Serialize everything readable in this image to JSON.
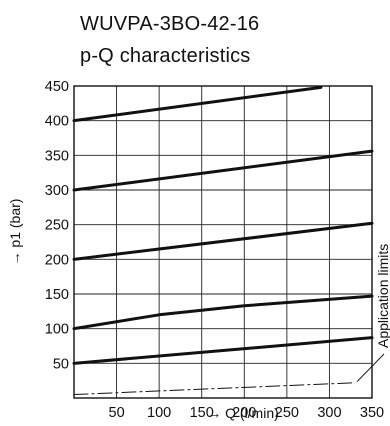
{
  "chart_data": {
    "type": "line",
    "title": "WUVPA-3BO-42-16",
    "subtitle": "p-Q characteristics",
    "xlabel": "→ Q (l/min)",
    "ylabel": "→ p1 (bar)",
    "xlim": [
      0,
      350
    ],
    "ylim": [
      0,
      450
    ],
    "x_ticks": [
      50,
      100,
      150,
      200,
      250,
      300,
      350
    ],
    "y_ticks": [
      50,
      100,
      150,
      200,
      250,
      300,
      350,
      400,
      450
    ],
    "grid": true,
    "series": [
      {
        "x": [
          0,
          290
        ],
        "values": [
          400,
          448
        ]
      },
      {
        "x": [
          0,
          350
        ],
        "values": [
          300,
          356
        ]
      },
      {
        "x": [
          0,
          350
        ],
        "values": [
          200,
          252
        ]
      },
      {
        "x": [
          0,
          100,
          200,
          350
        ],
        "values": [
          100,
          120,
          133,
          147
        ]
      },
      {
        "x": [
          0,
          350
        ],
        "values": [
          50,
          87
        ]
      },
      {
        "x": [
          0,
          330
        ],
        "values": [
          5,
          22
        ],
        "style": "dash-dot"
      }
    ],
    "annotations": [
      {
        "text": "Application limits",
        "points_to": {
          "x": 330,
          "y": 22
        }
      }
    ]
  }
}
